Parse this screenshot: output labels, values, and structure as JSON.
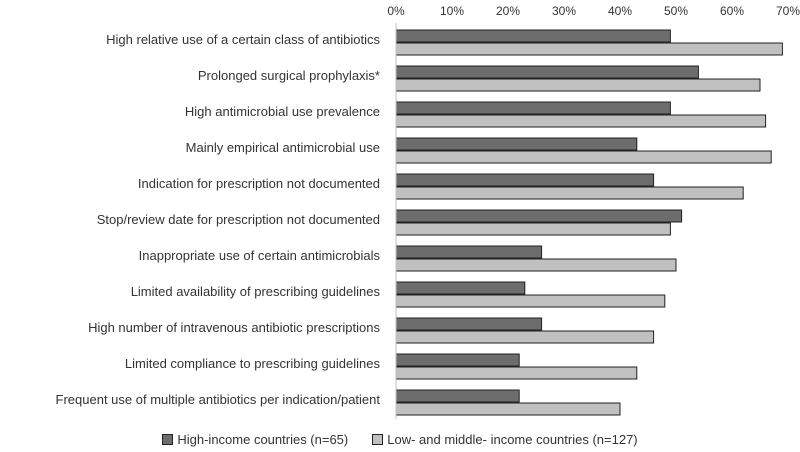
{
  "chart_data": {
    "type": "bar",
    "orientation": "horizontal",
    "title": "",
    "xlabel": "",
    "ylabel": "",
    "xlim": [
      0,
      70
    ],
    "x_ticks": [
      "0%",
      "10%",
      "20%",
      "30%",
      "40%",
      "50%",
      "60%",
      "70%"
    ],
    "x_axis_position": "top",
    "grid": false,
    "legend_position": "bottom",
    "categories": [
      "High relative use of a certain class of antibiotics",
      "Prolonged surgical prophylaxis*",
      "High antimicrobial use prevalence",
      "Mainly empirical antimicrobial use",
      "Indication for prescription not documented",
      "Stop/review date for prescription not documented",
      "Inappropriate use of certain antimicrobials",
      "Limited availability of prescribing guidelines",
      "High number of intravenous antibiotic prescriptions",
      "Limited compliance to prescribing guidelines",
      "Frequent use of multiple antibiotics per indication/patient"
    ],
    "series": [
      {
        "name": "High-income countries (n=65)",
        "color": "#6d6d6d",
        "values": [
          49,
          54,
          49,
          43,
          46,
          51,
          26,
          23,
          26,
          22,
          22
        ]
      },
      {
        "name": "Low- and middle- income countries (n=127)",
        "color": "#c0c0c0",
        "values": [
          69,
          65,
          66,
          67,
          62,
          49,
          50,
          48,
          46,
          43,
          40
        ]
      }
    ]
  }
}
